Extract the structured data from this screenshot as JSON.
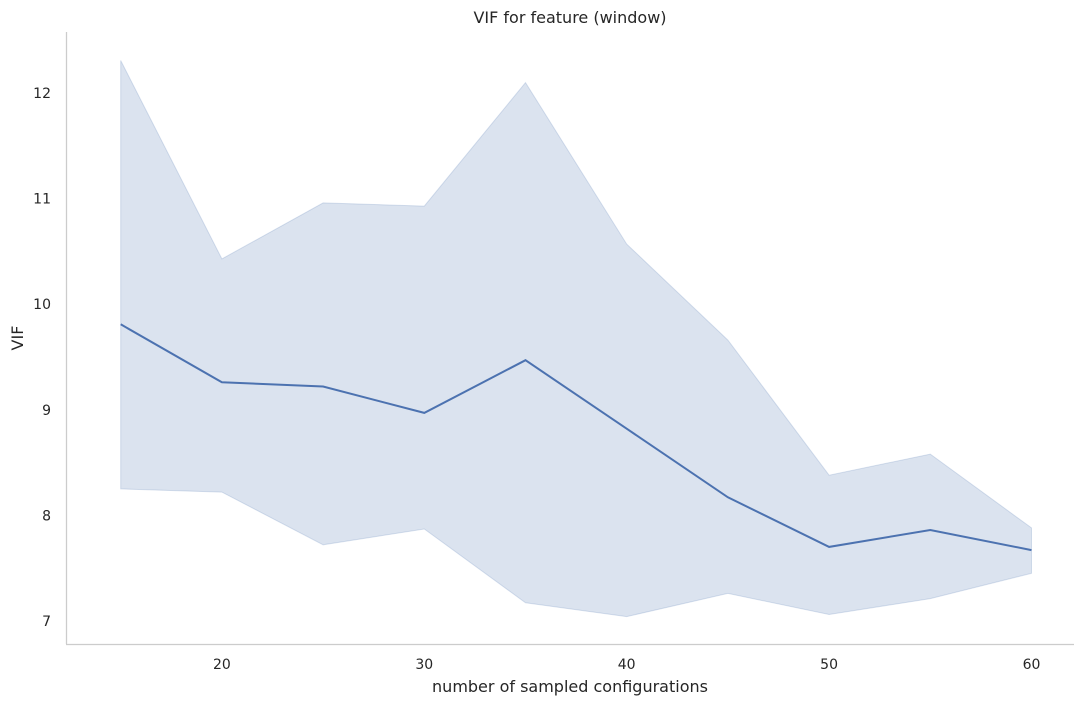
{
  "chart_data": {
    "type": "line",
    "title": "VIF for feature (window)",
    "xlabel": "number of sampled configurations",
    "ylabel": "VIF",
    "xlim": [
      12.3,
      62.1
    ],
    "ylim": [
      6.78,
      12.58
    ],
    "x_ticks": [
      20,
      30,
      40,
      50,
      60
    ],
    "y_ticks": [
      7,
      8,
      9,
      10,
      11,
      12
    ],
    "grid": false,
    "legend": "none",
    "x": [
      15,
      20,
      25,
      30,
      35,
      40,
      45,
      50,
      55,
      60
    ],
    "series": [
      {
        "values": [
          9.81,
          9.26,
          9.22,
          8.97,
          9.47,
          8.82,
          8.17,
          7.7,
          7.86,
          7.67
        ],
        "ci_upper": [
          12.31,
          10.43,
          10.96,
          10.93,
          12.1,
          10.57,
          9.66,
          8.38,
          8.58,
          7.88
        ],
        "ci_lower": [
          8.25,
          8.22,
          7.72,
          7.87,
          7.17,
          7.04,
          7.26,
          7.06,
          7.21,
          7.45
        ],
        "color": "#4c72b0"
      }
    ]
  }
}
